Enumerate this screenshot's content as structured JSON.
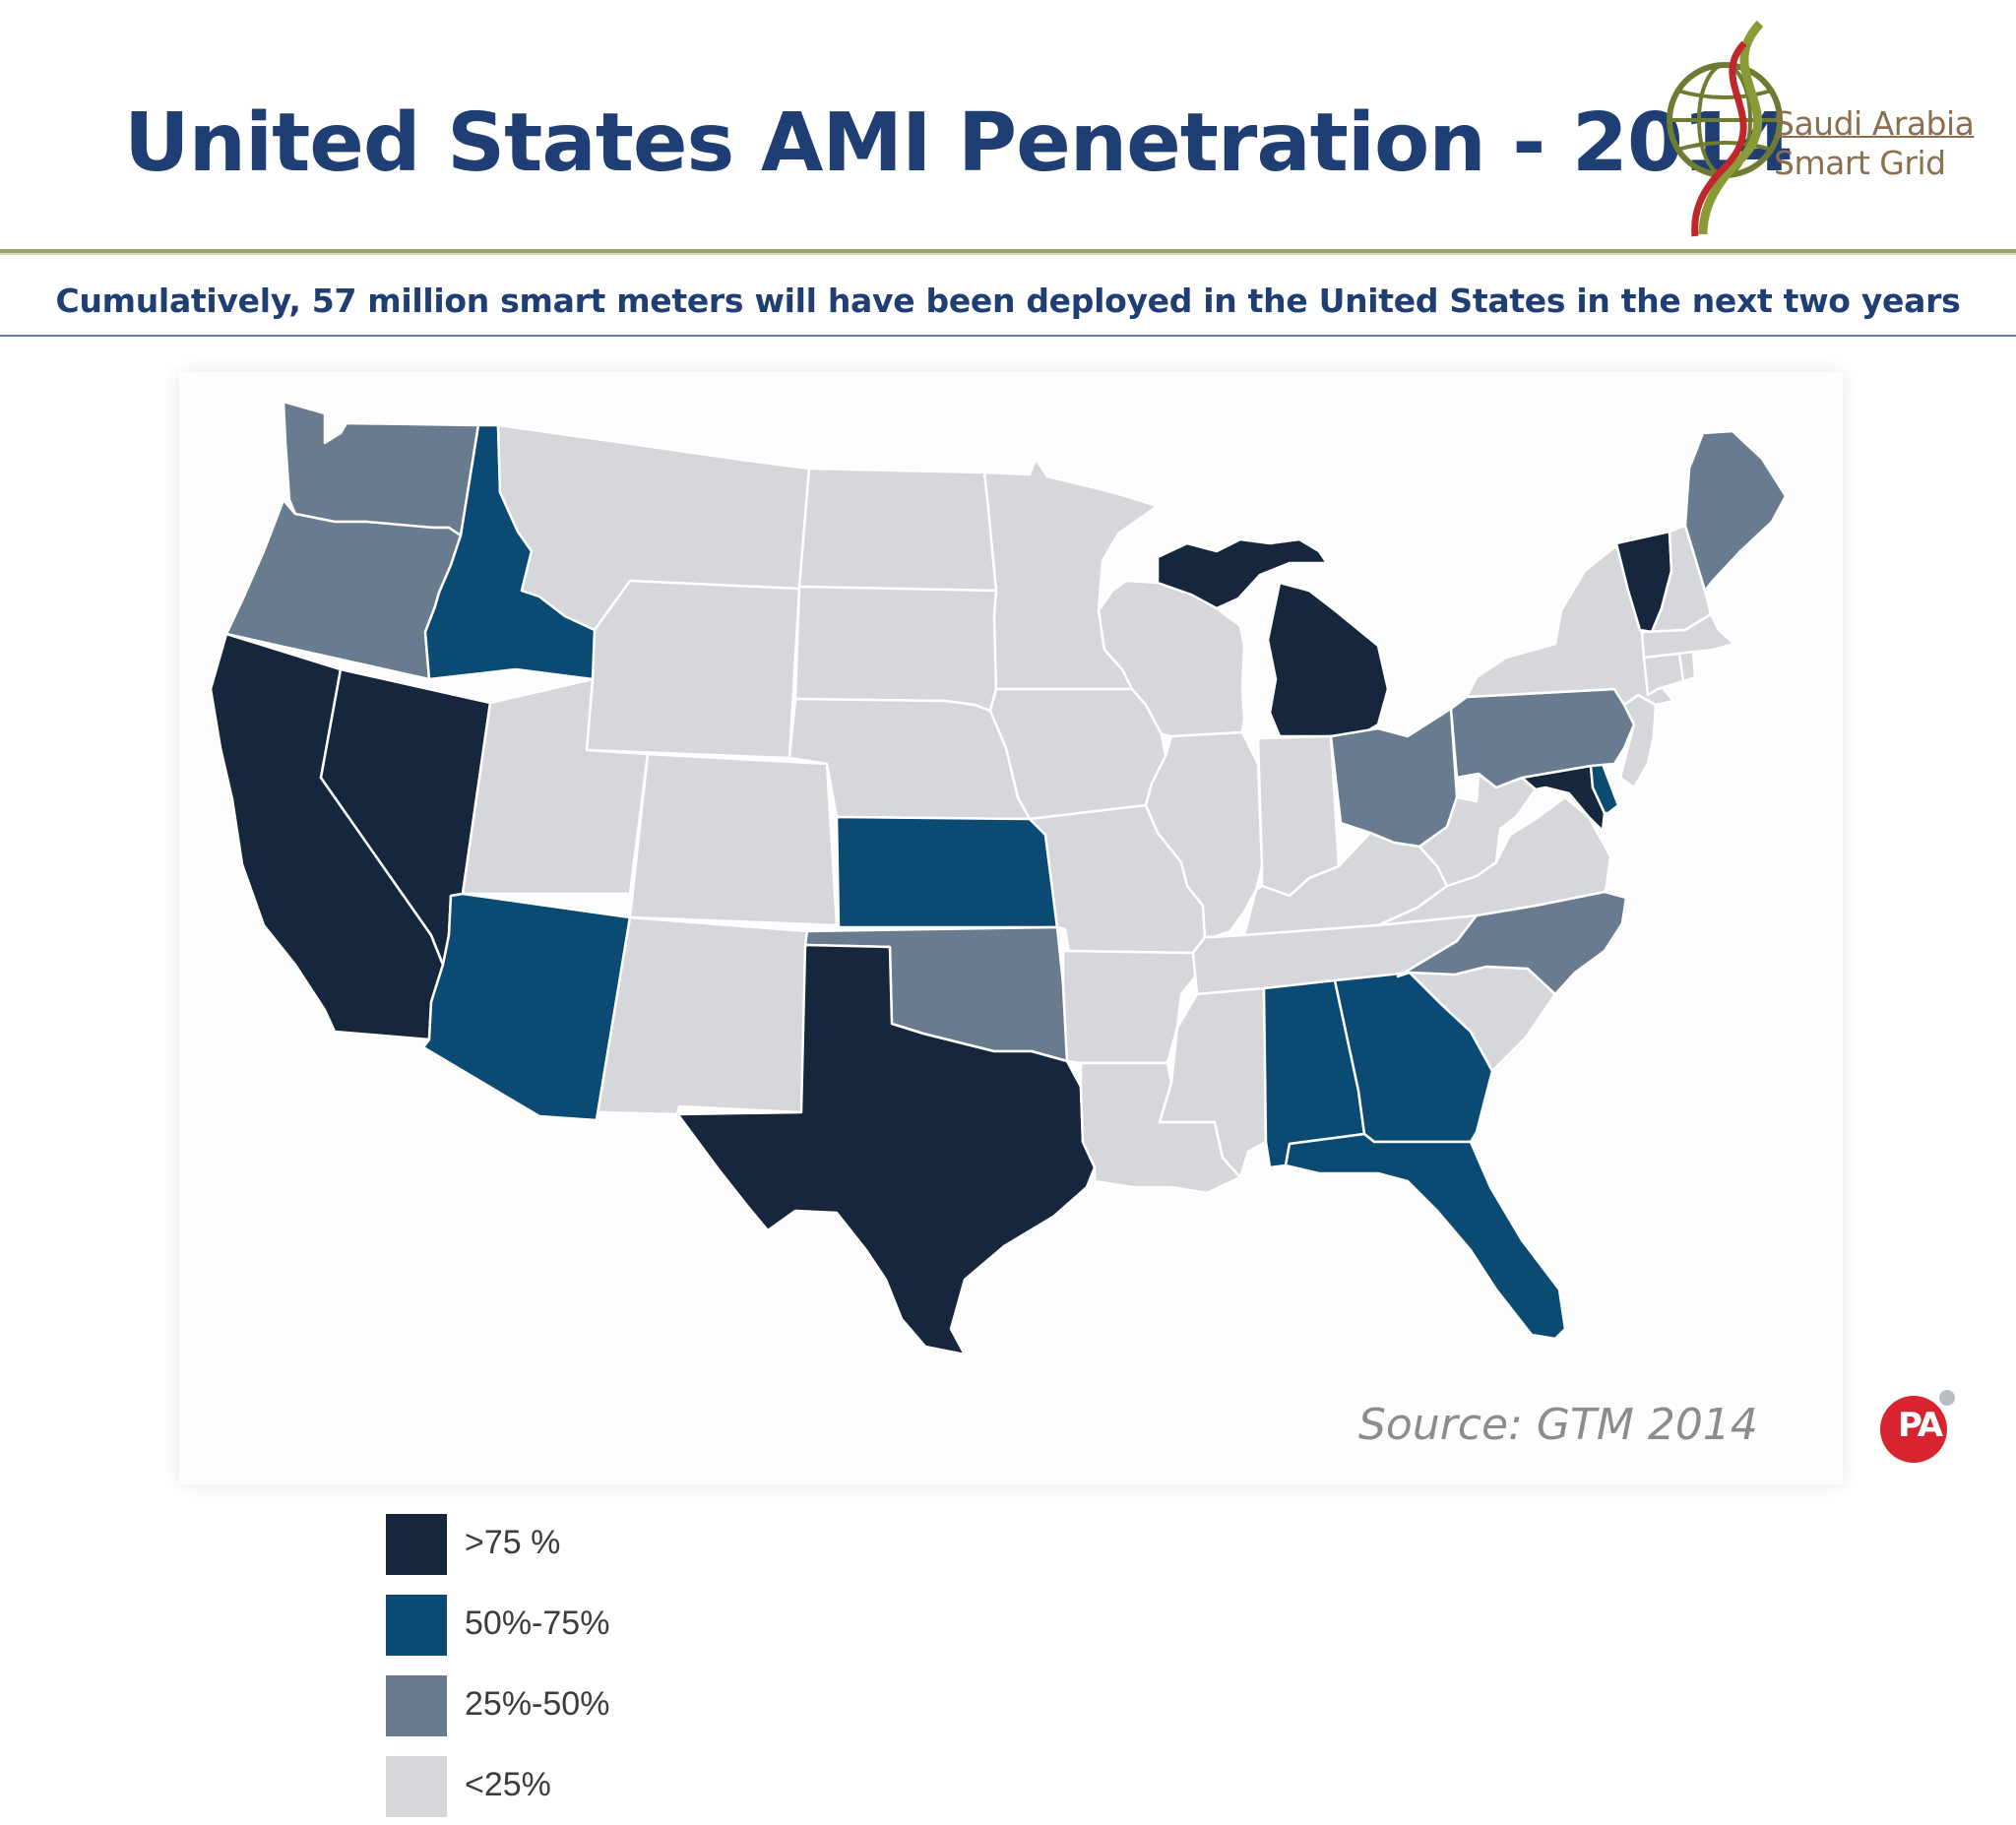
{
  "slide": {
    "title": "United States AMI Penetration - 2014",
    "subtitle": "Cumulatively,  57 million smart meters will have been deployed in the United States in the next two years",
    "source": "Source: GTM 2014"
  },
  "logo": {
    "line1": "Saudi Arabia",
    "line2": "Smart Grid",
    "brand": "PA",
    "colors": {
      "globe": "#6e7b32",
      "swoosh_red": "#c0272d",
      "swoosh_green": "#8a9a36",
      "text": "#8b6f4e",
      "pa_red": "#d82430"
    }
  },
  "map": {
    "legend": [
      {
        "label": ">75 %",
        "color": "#16263d"
      },
      {
        "label": "50%-75%",
        "color": "#0b4b73"
      },
      {
        "label": "25%-50%",
        "color": "#687b8f"
      },
      {
        "label": "<25%",
        "color": "#d6d7da"
      }
    ],
    "categories": {
      ">75 %": [
        "California",
        "Nevada",
        "Texas",
        "Michigan",
        "Vermont",
        "Maryland"
      ],
      "50%-75%": [
        "Idaho",
        "Arizona",
        "Kansas",
        "Alabama",
        "Georgia",
        "Florida",
        "Delaware"
      ],
      "25%-50%": [
        "Washington",
        "Oregon",
        "Oklahoma",
        "Ohio",
        "Pennsylvania",
        "North Carolina",
        "Maine"
      ],
      "<25%": [
        "Montana",
        "Wyoming",
        "Utah",
        "Colorado",
        "New Mexico",
        "North Dakota",
        "South Dakota",
        "Nebraska",
        "Minnesota",
        "Iowa",
        "Missouri",
        "Arkansas",
        "Louisiana",
        "Wisconsin",
        "Illinois",
        "Indiana",
        "Kentucky",
        "Tennessee",
        "Mississippi",
        "South Carolina",
        "Virginia",
        "West Virginia",
        "New York",
        "New Jersey",
        "New Hampshire",
        "Massachusetts",
        "Connecticut",
        "Rhode Island"
      ]
    }
  }
}
